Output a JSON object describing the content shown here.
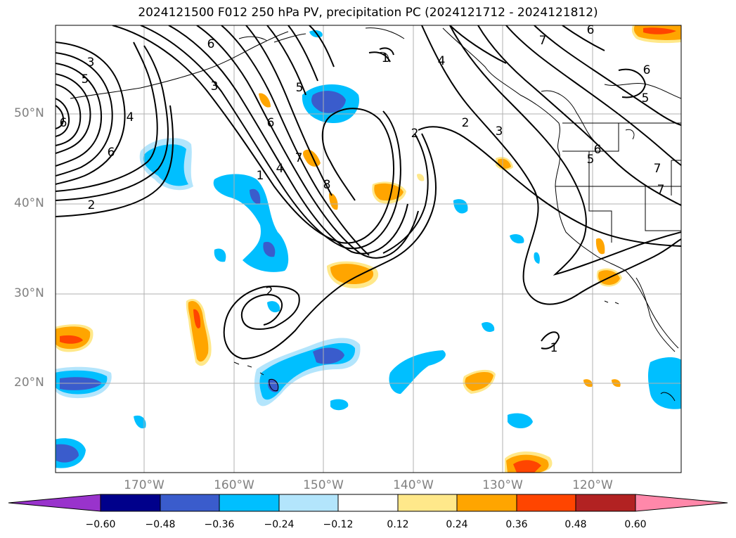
{
  "title": "2024121500 F012 250 hPa PV, precipitation PC (2024121712 - 2024121812)",
  "lat_labels": [
    "50°N",
    "40°N",
    "30°N",
    "20°N"
  ],
  "lon_labels": [
    "170°W",
    "160°W",
    "150°W",
    "140°W",
    "130°W",
    "120°W"
  ],
  "colorbar": {
    "ticks": [
      "−0.60",
      "−0.48",
      "−0.36",
      "−0.24",
      "−0.12",
      "0.12",
      "0.24",
      "0.36",
      "0.48",
      "0.60"
    ],
    "colors": [
      "#9933cc",
      "#00008b",
      "#3a5ccc",
      "#00bfff",
      "#b3e5fc",
      "#ffffff",
      "#ffe88a",
      "#ffa500",
      "#ff4500",
      "#b22222",
      "#ff88aa"
    ]
  },
  "contour_labels": [
    "3",
    "5",
    "4",
    "6",
    "2",
    "6",
    "3",
    "5",
    "6",
    "7",
    "1",
    "4",
    "8",
    "1",
    "2",
    "3",
    "4",
    "2",
    "6",
    "7",
    "6",
    "5",
    "6",
    "5",
    "7",
    "7",
    "2",
    "1",
    "6"
  ]
}
